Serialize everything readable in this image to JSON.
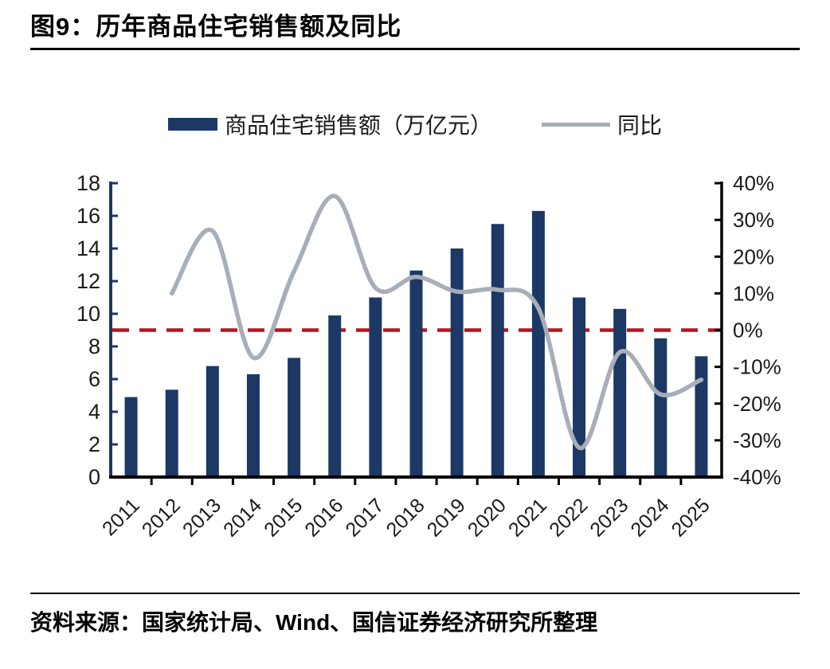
{
  "header": {
    "title": "图9：历年商品住宅销售额及同比"
  },
  "footer": {
    "source": "资料来源：国家统计局、Wind、国信证券经济研究所整理"
  },
  "colors": {
    "bar": "#1c3864",
    "line": "#a7aeb8",
    "reference_line": "#b5161f",
    "left_axis": "#1c3864",
    "right_axis": "#000000",
    "bottom_axis": "#000000",
    "label_text": "#1a1a1a"
  },
  "chart_data": {
    "type": "combo-bar-line",
    "title": "历年商品住宅销售额及同比",
    "categories": [
      "2011",
      "2012",
      "2013",
      "2014",
      "2015",
      "2016",
      "2017",
      "2018",
      "2019",
      "2020",
      "2021",
      "2022",
      "2023",
      "2024",
      "2025"
    ],
    "series": [
      {
        "type": "bar",
        "name": "商品住宅销售额（万亿元）",
        "axis": "left",
        "values": [
          4.9,
          5.35,
          6.8,
          6.3,
          7.3,
          9.9,
          11.0,
          12.65,
          14.0,
          15.5,
          16.3,
          11.0,
          10.3,
          8.5,
          7.4
        ]
      },
      {
        "type": "line",
        "name": "同比",
        "axis": "right",
        "values": [
          null,
          10,
          27,
          -7.5,
          16,
          36.5,
          11.5,
          14.5,
          10.5,
          11,
          6,
          -32,
          -6,
          -17.5,
          -13.5
        ]
      }
    ],
    "left_axis": {
      "min": 0,
      "max": 18,
      "tick_values": [
        0,
        2,
        4,
        6,
        8,
        10,
        12,
        14,
        16,
        18
      ],
      "tick_labels": [
        "0",
        "2",
        "4",
        "6",
        "8",
        "10",
        "12",
        "14",
        "16",
        "18"
      ]
    },
    "right_axis": {
      "min": -40,
      "max": 40,
      "tick_values": [
        40,
        30,
        20,
        10,
        0,
        -10,
        -20,
        -30,
        -40
      ],
      "tick_labels": [
        "40%",
        "30%",
        "20%",
        "10%",
        "0%",
        "-10%",
        "-20%",
        "-30%",
        "-40%"
      ]
    },
    "reference_line": {
      "axis": "right",
      "value": 0,
      "style": "dashed"
    },
    "legend_position": "top-center",
    "grid": false
  }
}
